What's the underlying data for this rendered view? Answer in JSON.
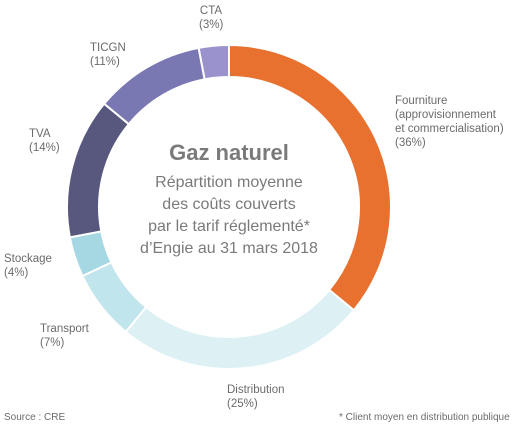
{
  "chart_data": {
    "type": "pie",
    "title": "Gaz naturel",
    "subtitle": "Répartition moyenne des coûts couverts par le tarif réglementé* d’Engie au 31 mars 2018",
    "categories": [
      "Fourniture (approvisionnement et commercialisation)",
      "Distribution",
      "Transport",
      "Stockage",
      "TVA",
      "TICGN",
      "CTA"
    ],
    "values": [
      36,
      25,
      7,
      4,
      14,
      11,
      3
    ],
    "unit": "%",
    "colors": [
      "#E8712F",
      "#DDF1F5",
      "#C1E5EC",
      "#A5D8E2",
      "#58587E",
      "#7A78B3",
      "#9A92CC"
    ],
    "slice_labels": [
      {
        "lines": [
          "Fourniture",
          "(approvisionnement",
          "et commercialisation)",
          "(36%)"
        ]
      },
      {
        "lines": [
          "Distribution",
          "(25%)"
        ]
      },
      {
        "lines": [
          "Transport",
          "(7%)"
        ]
      },
      {
        "lines": [
          "Stockage",
          "(4%)"
        ]
      },
      {
        "lines": [
          "TVA",
          "(14%)"
        ]
      },
      {
        "lines": [
          "TICGN",
          "(11%)"
        ]
      },
      {
        "lines": [
          "CTA",
          "(3%)"
        ]
      }
    ],
    "center_title": "Gaz naturel",
    "center_subtitle_lines": [
      "Répartition moyenne",
      "des coûts couverts",
      "par le tarif réglementé*",
      "d’Engie au 31 mars 2018"
    ]
  },
  "footer": {
    "source": "Source : CRE",
    "note": "* Client moyen en distribution publique"
  }
}
